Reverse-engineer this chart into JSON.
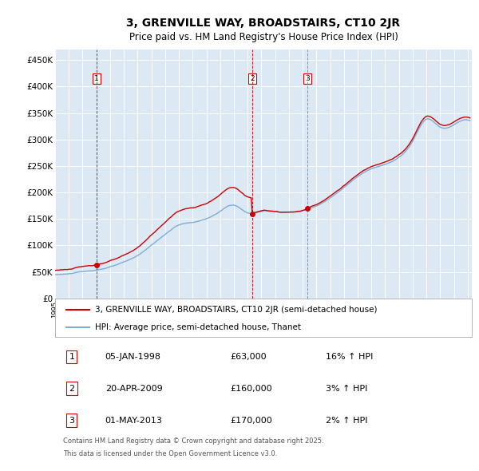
{
  "title": "3, GRENVILLE WAY, BROADSTAIRS, CT10 2JR",
  "subtitle": "Price paid vs. HM Land Registry's House Price Index (HPI)",
  "legend_line1": "3, GRENVILLE WAY, BROADSTAIRS, CT10 2JR (semi-detached house)",
  "legend_line2": "HPI: Average price, semi-detached house, Thanet",
  "ylim": [
    0,
    470000
  ],
  "yticks": [
    0,
    50000,
    100000,
    150000,
    200000,
    250000,
    300000,
    350000,
    400000,
    450000
  ],
  "ytick_labels": [
    "£0",
    "£50K",
    "£100K",
    "£150K",
    "£200K",
    "£250K",
    "£300K",
    "£350K",
    "£400K",
    "£450K"
  ],
  "bg_color": "#ffffff",
  "plot_bg_color": "#dce9f5",
  "red_line_color": "#cc0000",
  "blue_line_color": "#7eadd4",
  "sale1_date": "05-JAN-1998",
  "sale1_price": 63000,
  "sale1_hpi": "16% ↑ HPI",
  "sale2_date": "20-APR-2009",
  "sale2_price": 160000,
  "sale2_hpi": "3% ↑ HPI",
  "sale3_date": "01-MAY-2013",
  "sale3_price": 170000,
  "sale3_hpi": "2% ↑ HPI",
  "sale1_year": 1998.03,
  "sale2_year": 2009.3,
  "sale3_year": 2013.33,
  "footnote_line1": "Contains HM Land Registry data © Crown copyright and database right 2025.",
  "footnote_line2": "This data is licensed under the Open Government Licence v3.0.",
  "title_fontsize": 10,
  "subtitle_fontsize": 8.5,
  "tick_fontsize": 7.5,
  "legend_fontsize": 7.5,
  "table_fontsize": 8,
  "footnote_fontsize": 6
}
